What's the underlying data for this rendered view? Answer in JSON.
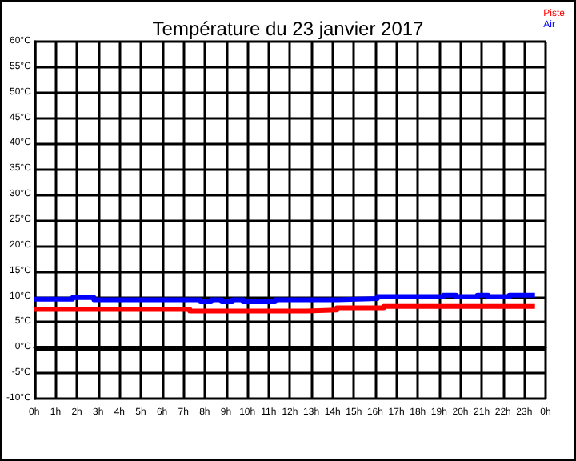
{
  "chart_data": {
    "type": "step",
    "title": "Température du 23 janvier 2017",
    "xlim": [
      "2017-01-23T00:00",
      "2017-01-24T00:00"
    ],
    "xticks": [
      {
        "value": "2017-01-23T00:00",
        "label": "0h"
      },
      {
        "value": "2017-01-23T01:00",
        "label": "1h"
      },
      {
        "value": "2017-01-23T02:00",
        "label": "2h"
      },
      {
        "value": "2017-01-23T03:00",
        "label": "3h"
      },
      {
        "value": "2017-01-23T04:00",
        "label": "4h"
      },
      {
        "value": "2017-01-23T05:00",
        "label": "5h"
      },
      {
        "value": "2017-01-23T06:00",
        "label": "6h"
      },
      {
        "value": "2017-01-23T07:00",
        "label": "7h"
      },
      {
        "value": "2017-01-23T08:00",
        "label": "8h"
      },
      {
        "value": "2017-01-23T09:00",
        "label": "9h"
      },
      {
        "value": "2017-01-23T10:00",
        "label": "10h"
      },
      {
        "value": "2017-01-23T11:00",
        "label": "11h"
      },
      {
        "value": "2017-01-23T12:00",
        "label": "12h"
      },
      {
        "value": "2017-01-23T13:00",
        "label": "13h"
      },
      {
        "value": "2017-01-23T14:00",
        "label": "14h"
      },
      {
        "value": "2017-01-23T15:00",
        "label": "15h"
      },
      {
        "value": "2017-01-23T16:00",
        "label": "16h"
      },
      {
        "value": "2017-01-23T17:00",
        "label": "17h"
      },
      {
        "value": "2017-01-23T18:00",
        "label": "18h"
      },
      {
        "value": "2017-01-23T19:00",
        "label": "19h"
      },
      {
        "value": "2017-01-23T20:00",
        "label": "20h"
      },
      {
        "value": "2017-01-23T21:00",
        "label": "21h"
      },
      {
        "value": "2017-01-23T22:00",
        "label": "22h"
      },
      {
        "value": "2017-01-23T23:00",
        "label": "23h"
      },
      {
        "value": "2017-01-24T00:00",
        "label": "0h"
      }
    ],
    "ylim": [
      -10,
      60
    ],
    "yticks": [
      {
        "value": -10,
        "label": "-10°C"
      },
      {
        "value": -5,
        "label": "-5°C"
      },
      {
        "value": 0,
        "label": "0°C"
      },
      {
        "value": 5,
        "label": "5°C"
      },
      {
        "value": 10,
        "label": "10°C"
      },
      {
        "value": 15,
        "label": "15°C"
      },
      {
        "value": 20,
        "label": "20°C"
      },
      {
        "value": 25,
        "label": "25°C"
      },
      {
        "value": 30,
        "label": "30°C"
      },
      {
        "value": 35,
        "label": "35°C"
      },
      {
        "value": 40,
        "label": "40°C"
      },
      {
        "value": 45,
        "label": "45°C"
      },
      {
        "value": 50,
        "label": "50°C"
      },
      {
        "value": 55,
        "label": "55°C"
      },
      {
        "value": 60,
        "label": "60°C"
      }
    ],
    "grid": true,
    "legend": "top right",
    "marker": "none",
    "line_style": "solid",
    "ref_lines": [
      {
        "axis": "y",
        "value": 0,
        "label": null,
        "color": "#000000"
      }
    ],
    "series": [
      {
        "name": "Piste",
        "color": "#ff0000",
        "x": [
          "2017-01-23T00:00",
          "2017-01-23T07:18",
          "2017-01-23T12:48",
          "2017-01-23T14:12",
          "2017-01-23T16:24",
          "2017-01-23T23:30"
        ],
        "values": [
          7.5,
          7.2,
          7.4,
          7.8,
          8.1,
          8.1
        ]
      },
      {
        "name": "Air",
        "color": "#0000ff",
        "x": [
          "2017-01-23T00:00",
          "2017-01-23T01:48",
          "2017-01-23T02:48",
          "2017-01-23T07:48",
          "2017-01-23T08:18",
          "2017-01-23T08:48",
          "2017-01-23T09:18",
          "2017-01-23T09:48",
          "2017-01-23T11:18",
          "2017-01-23T14:12",
          "2017-01-23T16:06",
          "2017-01-23T19:12",
          "2017-01-23T19:48",
          "2017-01-23T20:48",
          "2017-01-23T21:18",
          "2017-01-23T22:18",
          "2017-01-23T23:30"
        ],
        "values": [
          9.5,
          9.8,
          9.4,
          9.0,
          9.4,
          9.0,
          9.4,
          9.0,
          9.4,
          9.6,
          10.0,
          10.3,
          10.0,
          10.3,
          10.0,
          10.3,
          10.3
        ]
      }
    ]
  }
}
